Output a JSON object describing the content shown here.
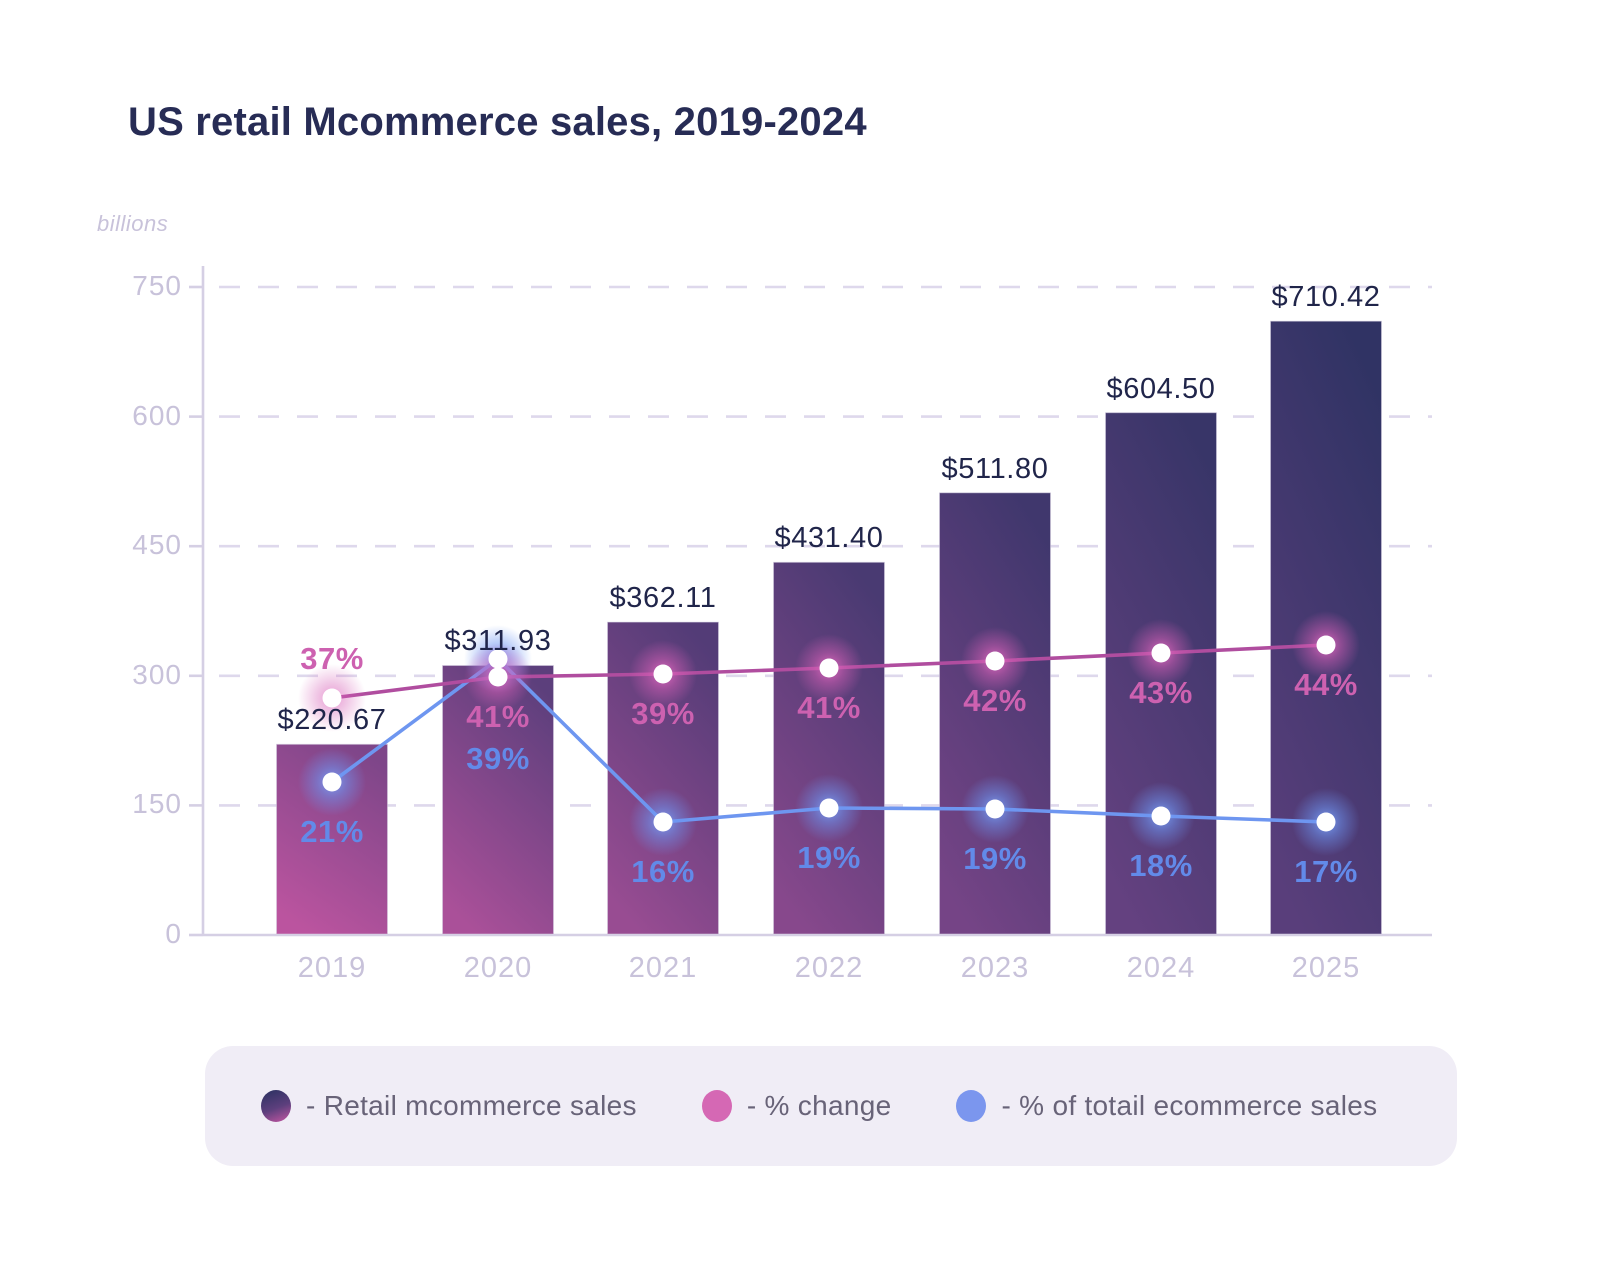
{
  "title": "US retail Mcommerce sales, 2019-2024",
  "y_axis": {
    "unit_label": "billions",
    "ticks": [
      0,
      150,
      300,
      450,
      600,
      750
    ],
    "max": 750
  },
  "x_axis": {
    "labels": [
      "2019",
      "2020",
      "2021",
      "2022",
      "2023",
      "2024",
      "2025"
    ]
  },
  "legend": {
    "items": [
      {
        "label": "- Retail mcommerce sales",
        "swatch_type": "bar-gradient"
      },
      {
        "label": "- % change",
        "swatch_type": "solid",
        "swatch_color": "#d568b4"
      },
      {
        "label": "- % of totail ecommerce sales",
        "swatch_type": "solid",
        "swatch_color": "#7b96ee"
      }
    ]
  },
  "chart_data": {
    "type": "combo-bar-line",
    "categories": [
      "2019",
      "2020",
      "2021",
      "2022",
      "2023",
      "2024",
      "2025"
    ],
    "series": [
      {
        "name": "Retail mcommerce sales",
        "type": "bar",
        "unit": "billions USD",
        "values": [
          220.67,
          311.93,
          362.11,
          431.4,
          511.8,
          604.5,
          710.42
        ],
        "data_labels": [
          "$220.67",
          "$311.93",
          "$362.11",
          "$431.40",
          "$511.80",
          "$604.50",
          "$710.42"
        ]
      },
      {
        "name": "% change",
        "type": "line",
        "values": [
          37,
          41,
          39,
          41,
          42,
          43,
          44
        ],
        "data_labels": [
          "37%",
          "41%",
          "39%",
          "41%",
          "42%",
          "43%",
          "44%"
        ]
      },
      {
        "name": "% of totail ecommerce sales",
        "type": "line",
        "values": [
          21,
          39,
          16,
          19,
          19,
          18,
          17
        ],
        "data_labels": [
          "21%",
          "39%",
          "16%",
          "19%",
          "19%",
          "18%",
          "17%"
        ]
      }
    ],
    "title": "US retail Mcommerce sales, 2019-2024",
    "ylabel": "billions",
    "ylim": [
      0,
      750
    ],
    "grid": "horizontal-dashed",
    "legend_position": "bottom"
  },
  "colors": {
    "title_text": "#272c55",
    "value_label_text": "#20254a",
    "axis_text": "#c8c2da",
    "grid_line": "#ded8ec",
    "axis_line": "#d5cfe4",
    "bar_top": "#2e3263",
    "bar_mid": "#5d3f7d",
    "bar_bottom": "#bb549f",
    "pink_line": "#b04d9f",
    "pink_text": "#cd61b0",
    "blue_line": "#6e96f0",
    "blue_text": "#628ae9",
    "dot_fill": "#ffffff",
    "legend_bg": "#f0edf6",
    "legend_text": "#686378"
  }
}
